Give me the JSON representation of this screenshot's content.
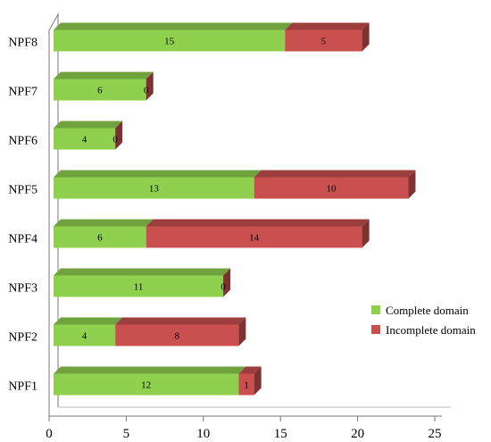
{
  "chart_data": {
    "type": "bar",
    "orientation": "horizontal",
    "stacked": true,
    "categories": [
      "NPF1",
      "NPF2",
      "NPF3",
      "NPF4",
      "NPF5",
      "NPF6",
      "NPF7",
      "NPF8"
    ],
    "series": [
      {
        "name": "Complete domain",
        "values": [
          12,
          4,
          11,
          6,
          13,
          4,
          6,
          15
        ],
        "color": "#8fd14f"
      },
      {
        "name": "Incomplete domain",
        "values": [
          1,
          8,
          0,
          14,
          10,
          0,
          0,
          5
        ],
        "color": "#c9504f"
      }
    ],
    "xlim": [
      0,
      25
    ],
    "xticks": [
      0,
      5,
      10,
      15,
      20,
      25
    ],
    "title": "",
    "xlabel": "",
    "ylabel": "",
    "grid": false,
    "legend_position": "right",
    "style": "3d"
  }
}
